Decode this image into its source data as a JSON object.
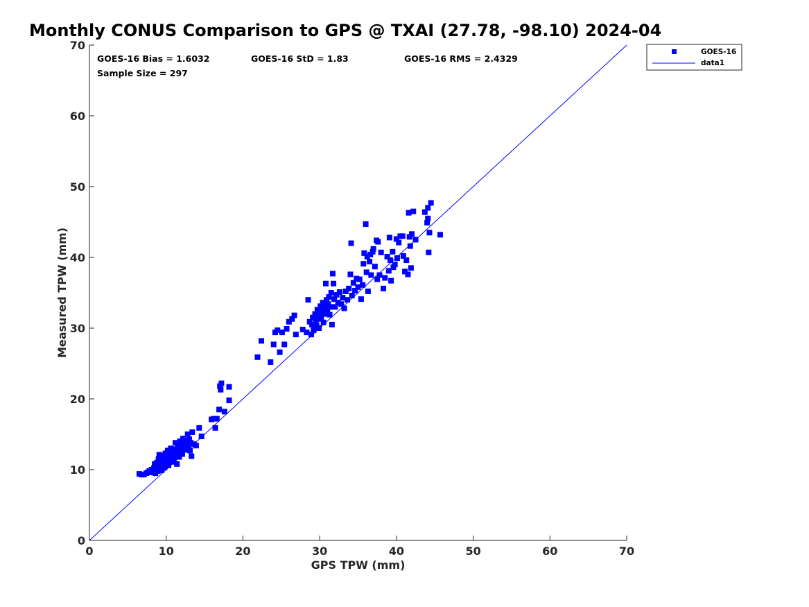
{
  "chart_data": {
    "type": "scatter",
    "title": "Monthly CONUS Comparison to GPS @ TXAI (27.78, -98.10) 2024-04",
    "xlabel": "GPS TPW (mm)",
    "ylabel": "Measured TPW (mm)",
    "xlim": [
      0,
      70
    ],
    "ylim": [
      0,
      70
    ],
    "xticks": [
      0,
      10,
      20,
      30,
      40,
      50,
      60,
      70
    ],
    "yticks": [
      0,
      10,
      20,
      30,
      40,
      50,
      60,
      70
    ],
    "grid": false,
    "legend_position": "outside top-right",
    "stats": {
      "bias": "GOES-16 Bias = 1.6032",
      "std": "GOES-16 StD = 1.83",
      "rms": "GOES-16 RMS = 2.4329",
      "sample": "Sample Size = 297"
    },
    "series": [
      {
        "name": "GOES-16",
        "marker": "square",
        "color": "#0000ff",
        "points": [
          [
            6.5,
            9.4
          ],
          [
            6.8,
            9.3
          ],
          [
            7.1,
            9.3
          ],
          [
            7.4,
            9.5
          ],
          [
            7.6,
            9.6
          ],
          [
            7.8,
            9.8
          ],
          [
            8.0,
            9.6
          ],
          [
            8.1,
            10.0
          ],
          [
            8.3,
            9.7
          ],
          [
            8.4,
            10.2
          ],
          [
            8.5,
            10.8
          ],
          [
            8.6,
            9.5
          ],
          [
            8.7,
            10.4
          ],
          [
            8.8,
            11.0
          ],
          [
            8.9,
            9.8
          ],
          [
            9.0,
            10.2
          ],
          [
            9.0,
            11.5
          ],
          [
            9.1,
            12.1
          ],
          [
            9.2,
            10.6
          ],
          [
            9.3,
            11.2
          ],
          [
            9.4,
            9.9
          ],
          [
            9.5,
            12.0
          ],
          [
            9.6,
            10.9
          ],
          [
            9.7,
            11.7
          ],
          [
            9.8,
            10.3
          ],
          [
            9.9,
            12.3
          ],
          [
            10.0,
            11.0
          ],
          [
            10.1,
            11.8
          ],
          [
            10.2,
            12.7
          ],
          [
            10.3,
            10.6
          ],
          [
            10.4,
            11.4
          ],
          [
            10.5,
            12.2
          ],
          [
            10.6,
            13.0
          ],
          [
            10.7,
            11.1
          ],
          [
            10.8,
            11.9
          ],
          [
            10.9,
            12.5
          ],
          [
            11.0,
            11.4
          ],
          [
            11.1,
            12.9
          ],
          [
            11.2,
            13.8
          ],
          [
            11.3,
            12.1
          ],
          [
            11.4,
            10.8
          ],
          [
            11.5,
            13.3
          ],
          [
            11.6,
            12.6
          ],
          [
            11.7,
            11.8
          ],
          [
            11.8,
            14.0
          ],
          [
            11.9,
            12.9
          ],
          [
            12.0,
            13.5
          ],
          [
            12.1,
            12.2
          ],
          [
            12.2,
            14.4
          ],
          [
            12.3,
            13.1
          ],
          [
            12.4,
            13.7
          ],
          [
            12.5,
            12.8
          ],
          [
            12.6,
            14.1
          ],
          [
            12.7,
            13.4
          ],
          [
            12.8,
            15.0
          ],
          [
            12.9,
            13.0
          ],
          [
            13.0,
            14.3
          ],
          [
            13.1,
            12.7
          ],
          [
            13.2,
            13.8
          ],
          [
            13.3,
            11.9
          ],
          [
            13.4,
            15.3
          ],
          [
            13.6,
            13.6
          ],
          [
            13.9,
            13.4
          ],
          [
            14.3,
            15.9
          ],
          [
            14.6,
            14.7
          ],
          [
            15.9,
            17.1
          ],
          [
            16.2,
            17.2
          ],
          [
            16.4,
            15.9
          ],
          [
            16.6,
            17.2
          ],
          [
            16.9,
            18.5
          ],
          [
            17.0,
            21.8
          ],
          [
            17.2,
            22.2
          ],
          [
            17.1,
            21.3
          ],
          [
            17.6,
            18.2
          ],
          [
            18.2,
            19.8
          ],
          [
            18.2,
            21.7
          ],
          [
            21.9,
            25.9
          ],
          [
            22.4,
            28.2
          ],
          [
            23.6,
            25.2
          ],
          [
            24.0,
            27.7
          ],
          [
            24.2,
            29.4
          ],
          [
            24.5,
            29.7
          ],
          [
            24.8,
            26.6
          ],
          [
            25.1,
            29.4
          ],
          [
            25.4,
            27.7
          ],
          [
            25.7,
            29.9
          ],
          [
            26.0,
            30.9
          ],
          [
            26.4,
            31.3
          ],
          [
            26.7,
            31.8
          ],
          [
            26.9,
            29.1
          ],
          [
            27.8,
            29.8
          ],
          [
            28.3,
            29.4
          ],
          [
            28.5,
            34.0
          ],
          [
            28.7,
            30.9
          ],
          [
            28.9,
            29.1
          ],
          [
            29.0,
            30.5
          ],
          [
            29.1,
            31.5
          ],
          [
            29.2,
            29.7
          ],
          [
            29.3,
            30.2
          ],
          [
            29.4,
            32.0
          ],
          [
            29.5,
            31.1
          ],
          [
            29.6,
            30.4
          ],
          [
            29.7,
            32.6
          ],
          [
            29.8,
            31.5
          ],
          [
            29.9,
            30.0
          ],
          [
            30.0,
            31.9
          ],
          [
            30.1,
            33.1
          ],
          [
            30.2,
            31.3
          ],
          [
            30.3,
            32.5
          ],
          [
            30.4,
            33.6
          ],
          [
            30.5,
            30.8
          ],
          [
            30.6,
            32.0
          ],
          [
            30.7,
            33.0
          ],
          [
            30.8,
            36.3
          ],
          [
            30.9,
            34.0
          ],
          [
            31.0,
            32.3
          ],
          [
            31.1,
            33.4
          ],
          [
            31.2,
            34.4
          ],
          [
            31.3,
            31.9
          ],
          [
            31.4,
            33.0
          ],
          [
            31.5,
            35.0
          ],
          [
            31.6,
            30.5
          ],
          [
            31.7,
            37.7
          ],
          [
            31.8,
            36.3
          ],
          [
            31.9,
            34.1
          ],
          [
            32.0,
            33.0
          ],
          [
            32.2,
            34.7
          ],
          [
            32.4,
            33.6
          ],
          [
            32.6,
            35.1
          ],
          [
            32.8,
            33.4
          ],
          [
            33.0,
            34.3
          ],
          [
            33.2,
            32.8
          ],
          [
            33.4,
            35.2
          ],
          [
            33.6,
            34.0
          ],
          [
            33.8,
            35.6
          ],
          [
            34.0,
            37.6
          ],
          [
            34.1,
            42.0
          ],
          [
            34.2,
            34.6
          ],
          [
            34.4,
            36.4
          ],
          [
            34.6,
            35.3
          ],
          [
            34.8,
            37.0
          ],
          [
            35.0,
            35.8
          ],
          [
            35.2,
            36.9
          ],
          [
            35.4,
            34.1
          ],
          [
            35.6,
            36.1
          ],
          [
            35.7,
            39.1
          ],
          [
            35.8,
            40.6
          ],
          [
            36.0,
            44.7
          ],
          [
            36.1,
            37.9
          ],
          [
            36.2,
            40.1
          ],
          [
            36.3,
            35.2
          ],
          [
            36.5,
            39.4
          ],
          [
            36.6,
            40.4
          ],
          [
            36.7,
            37.5
          ],
          [
            36.9,
            40.8
          ],
          [
            37.0,
            41.2
          ],
          [
            37.2,
            38.7
          ],
          [
            37.4,
            42.4
          ],
          [
            37.5,
            36.9
          ],
          [
            37.6,
            42.2
          ],
          [
            37.8,
            37.5
          ],
          [
            38.0,
            40.7
          ],
          [
            38.3,
            35.6
          ],
          [
            38.5,
            37.1
          ],
          [
            38.8,
            40.1
          ],
          [
            39.0,
            38.1
          ],
          [
            39.1,
            42.8
          ],
          [
            39.2,
            39.6
          ],
          [
            39.3,
            36.7
          ],
          [
            39.5,
            40.8
          ],
          [
            39.6,
            38.6
          ],
          [
            39.8,
            39.0
          ],
          [
            40.0,
            42.6
          ],
          [
            40.1,
            39.9
          ],
          [
            40.3,
            42.1
          ],
          [
            40.5,
            43.0
          ],
          [
            40.8,
            43.0
          ],
          [
            40.9,
            40.2
          ],
          [
            41.1,
            38.0
          ],
          [
            41.3,
            39.6
          ],
          [
            41.5,
            37.6
          ],
          [
            41.6,
            46.3
          ],
          [
            41.7,
            42.9
          ],
          [
            41.8,
            41.6
          ],
          [
            41.9,
            38.5
          ],
          [
            42.0,
            43.3
          ],
          [
            42.2,
            46.5
          ],
          [
            42.5,
            42.5
          ],
          [
            43.7,
            46.4
          ],
          [
            44.0,
            44.9
          ],
          [
            44.1,
            45.5
          ],
          [
            44.1,
            47.0
          ],
          [
            44.2,
            40.7
          ],
          [
            44.3,
            43.5
          ],
          [
            44.5,
            47.7
          ],
          [
            45.7,
            43.2
          ]
        ]
      },
      {
        "name": "data1",
        "type": "line",
        "color": "#0000ff",
        "x": [
          0,
          70
        ],
        "y": [
          0,
          70
        ]
      }
    ]
  }
}
